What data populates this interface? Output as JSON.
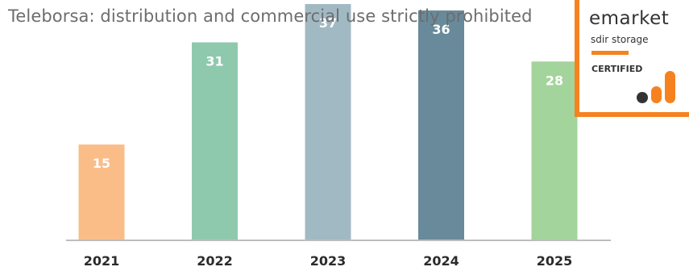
{
  "watermark": "Teleborsa: distribution and commercial use strictly prohibited",
  "badge": {
    "brand": "emarket",
    "subtitle": "sdir storage",
    "certified": "CERTIFIED"
  },
  "chart_data": {
    "type": "bar",
    "categories": [
      "2021",
      "2022",
      "2023",
      "2024",
      "2025"
    ],
    "values": [
      15,
      31,
      37,
      36,
      28
    ],
    "data_labels": [
      "15",
      "31",
      "37",
      "36",
      "28"
    ],
    "colors": [
      "#fbbd88",
      "#8fc9ad",
      "#a1b9c3",
      "#688a9b",
      "#a3d49b"
    ],
    "title": "",
    "xlabel": "",
    "ylabel": "",
    "ylim": [
      0,
      37
    ],
    "grid": false,
    "legend": "none"
  }
}
